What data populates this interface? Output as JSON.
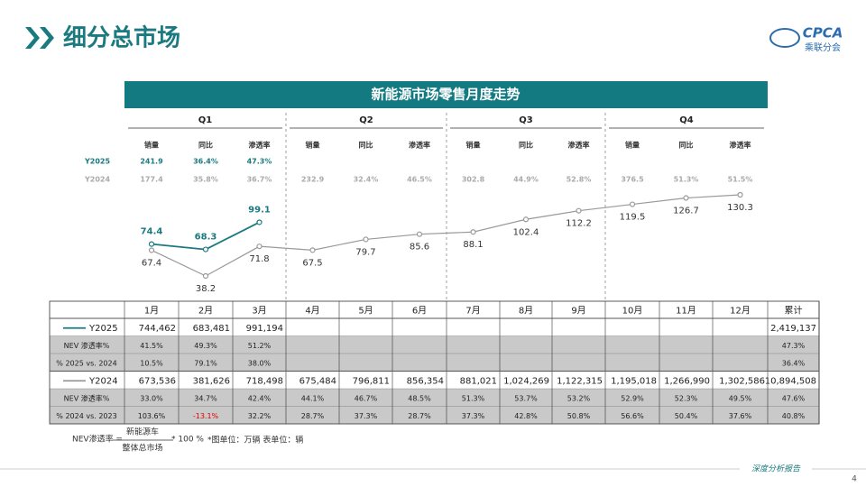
{
  "header": {
    "title": "细分总市场",
    "logo_text": "CPCA",
    "logo_sub": "乘联分会"
  },
  "chart_data": {
    "type": "line",
    "title": "新能源市场零售月度走势",
    "categories": [
      "1月",
      "2月",
      "3月",
      "4月",
      "5月",
      "6月",
      "7月",
      "8月",
      "9月",
      "10月",
      "11月",
      "12月"
    ],
    "series": [
      {
        "name": "Y2025",
        "color": "#1a7a80",
        "values": [
          74.4,
          68.3,
          99.1,
          null,
          null,
          null,
          null,
          null,
          null,
          null,
          null,
          null
        ]
      },
      {
        "name": "Y2024",
        "color": "#999999",
        "values": [
          67.4,
          38.2,
          71.8,
          67.5,
          79.7,
          85.6,
          88.1,
          102.4,
          112.2,
          119.5,
          126.7,
          130.3
        ]
      }
    ]
  },
  "quarter_summary": [
    {
      "name": "Q1",
      "headers": [
        "销量",
        "同比",
        "渗透率"
      ],
      "rows": [
        [
          "241.9",
          "36.4%",
          "47.3%"
        ],
        [
          "177.4",
          "35.8%",
          "36.7%"
        ]
      ]
    },
    {
      "name": "Q2",
      "headers": [
        "销量",
        "同比",
        "渗透率"
      ],
      "rows": [
        null,
        [
          "232.9",
          "32.4%",
          "46.5%"
        ]
      ]
    },
    {
      "name": "Q3",
      "headers": [
        "销量",
        "同比",
        "渗透率"
      ],
      "rows": [
        null,
        [
          "302.8",
          "44.9%",
          "52.8%"
        ]
      ]
    },
    {
      "name": "Q4",
      "headers": [
        "销量",
        "同比",
        "渗透率"
      ],
      "rows": [
        null,
        [
          "376.5",
          "51.3%",
          "51.5%"
        ]
      ]
    }
  ],
  "table": {
    "total_header": "累计",
    "rows": [
      {
        "cells": [
          "744,462",
          "683,481",
          "991,194",
          null,
          null,
          null,
          null,
          null,
          null,
          null,
          null,
          null,
          "2,419,137"
        ]
      },
      {
        "label": "NEV 渗透率%",
        "cells": [
          "41.5%",
          "49.3%",
          "51.2%",
          null,
          null,
          null,
          null,
          null,
          null,
          null,
          null,
          null,
          "47.3%"
        ]
      },
      {
        "label": "% 2025 vs. 2024",
        "cells": [
          "10.5%",
          "79.1%",
          "38.0%",
          null,
          null,
          null,
          null,
          null,
          null,
          null,
          null,
          null,
          "36.4%"
        ]
      },
      {
        "cells": [
          "673,536",
          "381,626",
          "718,498",
          "675,484",
          "796,811",
          "856,354",
          "881,021",
          "1,024,269",
          "1,122,315",
          "1,195,018",
          "1,266,990",
          "1,302,586",
          "10,894,508"
        ]
      },
      {
        "label": "NEV 渗透率%",
        "cells": [
          "33.0%",
          "34.7%",
          "42.4%",
          "44.1%",
          "46.7%",
          "48.5%",
          "51.3%",
          "53.7%",
          "53.2%",
          "52.9%",
          "52.3%",
          "49.5%",
          "47.6%"
        ]
      },
      {
        "label": "% 2024 vs. 2023",
        "cells": [
          "103.6%",
          "-13.1%",
          "32.2%",
          "28.7%",
          "37.3%",
          "28.7%",
          "37.3%",
          "42.8%",
          "50.8%",
          "56.6%",
          "50.4%",
          "37.6%",
          "40.8%"
        ]
      }
    ]
  },
  "footer": {
    "formula_left": "NEV渗透率 =",
    "numerator": "新能源车",
    "denominator": "整体总市场",
    "formula_right": "* 100 %",
    "units": "*图单位：万辆   表单位：辆",
    "report": "深度分析报告",
    "page": "4"
  }
}
